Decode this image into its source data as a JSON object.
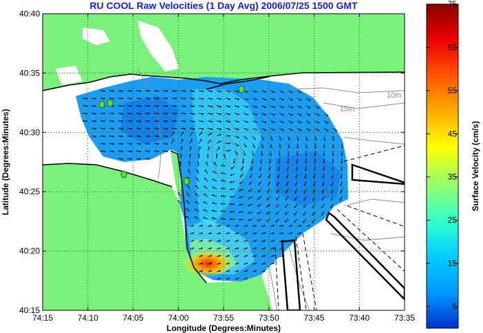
{
  "title": "RU COOL Raw Velocities (1 Day Avg) 2006/07/25 1500 GMT",
  "x_axis": {
    "label": "Longitude (Degrees:Minutes)",
    "ticks": [
      "74:15",
      "74:10",
      "74:05",
      "74:00",
      "73:55",
      "73:50",
      "73:45",
      "73:40",
      "73:35"
    ]
  },
  "y_axis": {
    "label": "Latitude (Degrees:Minutes)",
    "ticks": [
      "40:40",
      "40:35",
      "40:30",
      "40:25",
      "40:20",
      "40:15"
    ]
  },
  "colorbar": {
    "label": "Surface Velocity (cm/s)",
    "ticks": [
      "75",
      "65",
      "55",
      "45",
      "35",
      "25",
      "15",
      "5"
    ],
    "range": [
      0,
      75
    ]
  },
  "depth_labels": [
    "10m",
    "15m"
  ],
  "colors": {
    "land": "#7cf07c",
    "water": "#ffffff",
    "title": "#1a1ad8",
    "grid": "#006400"
  }
}
